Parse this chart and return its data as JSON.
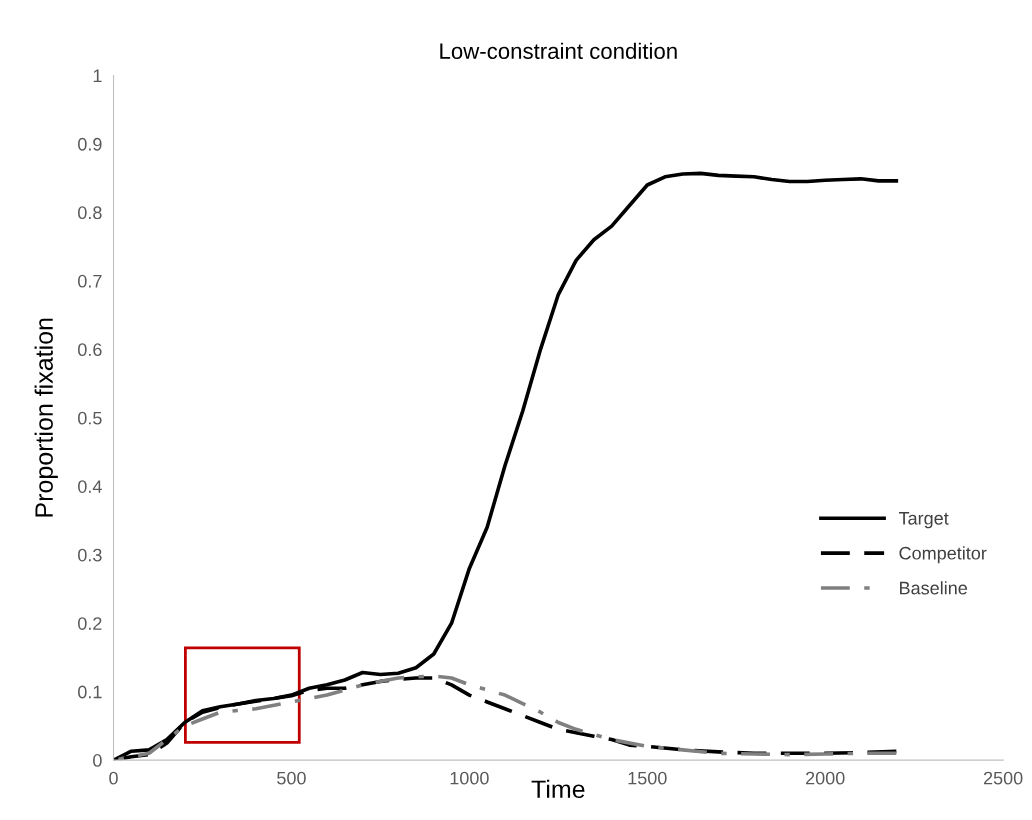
{
  "chart_data": {
    "type": "line",
    "title": "Low-constraint condition",
    "xlabel": "Time",
    "ylabel": "Proportion fixation",
    "xlim": [
      0,
      2500
    ],
    "xticks": [
      0,
      500,
      1000,
      1500,
      2000,
      2500
    ],
    "ylim": [
      0,
      1
    ],
    "yticks": [
      0,
      0.1,
      0.2,
      0.3,
      0.4,
      0.5,
      0.6,
      0.7,
      0.8,
      0.9,
      1
    ],
    "grid": false,
    "legend": "right",
    "series": [
      {
        "name": "Target",
        "color": "#000000",
        "line_style": "solid",
        "x": [
          0,
          50,
          100,
          150,
          200,
          250,
          300,
          350,
          400,
          450,
          500,
          550,
          600,
          650,
          700,
          750,
          800,
          850,
          900,
          950,
          1000,
          1050,
          1100,
          1150,
          1200,
          1250,
          1300,
          1350,
          1400,
          1450,
          1500,
          1550,
          1600,
          1650,
          1700,
          1750,
          1800,
          1850,
          1900,
          1950,
          2000,
          2050,
          2100,
          2150,
          2200
        ],
        "values": [
          0,
          0.013,
          0.015,
          0.03,
          0.055,
          0.072,
          0.078,
          0.082,
          0.087,
          0.09,
          0.095,
          0.105,
          0.11,
          0.117,
          0.128,
          0.125,
          0.127,
          0.135,
          0.155,
          0.2,
          0.28,
          0.34,
          0.43,
          0.51,
          0.6,
          0.68,
          0.73,
          0.76,
          0.78,
          0.81,
          0.84,
          0.852,
          0.856,
          0.857,
          0.854,
          0.853,
          0.852,
          0.848,
          0.845,
          0.845,
          0.847,
          0.848,
          0.849,
          0.846,
          0.846
        ]
      },
      {
        "name": "Competitor",
        "color": "#000000",
        "line_style": "dashed",
        "x": [
          0,
          50,
          100,
          150,
          200,
          250,
          300,
          350,
          400,
          450,
          500,
          550,
          600,
          650,
          700,
          750,
          800,
          850,
          900,
          950,
          1000,
          1050,
          1100,
          1150,
          1200,
          1250,
          1300,
          1350,
          1400,
          1450,
          1500,
          1600,
          1700,
          1800,
          1900,
          2000,
          2100,
          2200
        ],
        "values": [
          0,
          0.005,
          0.008,
          0.025,
          0.055,
          0.07,
          0.077,
          0.082,
          0.086,
          0.09,
          0.094,
          0.102,
          0.105,
          0.105,
          0.11,
          0.115,
          0.118,
          0.12,
          0.12,
          0.11,
          0.095,
          0.085,
          0.075,
          0.065,
          0.055,
          0.045,
          0.04,
          0.035,
          0.03,
          0.022,
          0.02,
          0.015,
          0.012,
          0.01,
          0.01,
          0.01,
          0.011,
          0.013
        ]
      },
      {
        "name": "Baseline",
        "color": "#808080",
        "line_style": "dashdot",
        "x": [
          0,
          100,
          200,
          250,
          300,
          400,
          500,
          600,
          700,
          800,
          900,
          950,
          1000,
          1100,
          1200,
          1250,
          1300,
          1400,
          1500,
          1600,
          1700,
          1800,
          1900,
          2000,
          2100,
          2200
        ],
        "values": [
          0,
          0.01,
          0.05,
          0.06,
          0.07,
          0.075,
          0.085,
          0.095,
          0.11,
          0.12,
          0.123,
          0.12,
          0.11,
          0.095,
          0.07,
          0.055,
          0.045,
          0.03,
          0.02,
          0.015,
          0.01,
          0.009,
          0.008,
          0.009,
          0.01,
          0.01
        ]
      }
    ]
  }
}
